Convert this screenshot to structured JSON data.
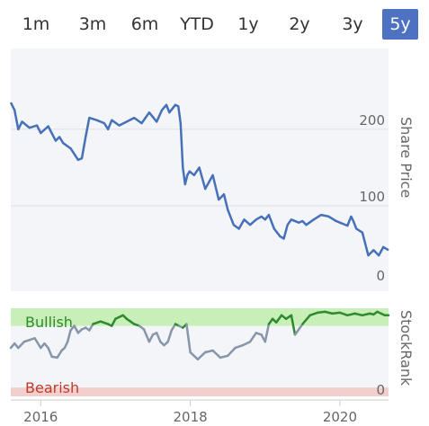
{
  "range_tabs": [
    {
      "label": "1m",
      "active": false
    },
    {
      "label": "3m",
      "active": false
    },
    {
      "label": "6m",
      "active": false
    },
    {
      "label": "YTD",
      "active": false
    },
    {
      "label": "1y",
      "active": false
    },
    {
      "label": "2y",
      "active": false
    },
    {
      "label": "3y",
      "active": false
    },
    {
      "label": "5y",
      "active": true
    }
  ],
  "colors": {
    "price_line": "#4670b8",
    "bullish_band": "#c8efb7",
    "bearish_band": "#f1cfcd",
    "bullish_line": "#2f8a2f",
    "neutral_line": "#8796a8",
    "active_tab": "#4d72c2"
  },
  "chart_data": [
    {
      "type": "line",
      "ylabel": "Share Price",
      "ylim": [
        0,
        260
      ],
      "y_ticks": [
        "200",
        "100",
        "0"
      ],
      "y_tick_values": [
        200,
        100,
        0
      ],
      "x_ticks": [
        "2016",
        "2018",
        "2020"
      ],
      "x_tick_values": [
        2016,
        2018,
        2020
      ],
      "xlim": [
        2015.6,
        2020.65
      ],
      "grid": true,
      "series": [
        {
          "x": [
            2015.6,
            2015.65,
            2015.7,
            2015.75,
            2015.85,
            2015.95,
            2016.0,
            2016.1,
            2016.2,
            2016.25,
            2016.3,
            2016.4,
            2016.5,
            2016.55,
            2016.6,
            2016.65,
            2016.75,
            2016.85,
            2016.9,
            2016.95,
            2017.05,
            2017.15,
            2017.25,
            2017.35,
            2017.45,
            2017.55,
            2017.62,
            2017.68,
            2017.72,
            2017.8,
            2017.84,
            2017.87,
            2017.9,
            2017.93,
            2017.96,
            2017.99,
            2018.05,
            2018.12,
            2018.2,
            2018.3,
            2018.38,
            2018.45,
            2018.5,
            2018.58,
            2018.65,
            2018.72,
            2018.8,
            2018.88,
            2018.95,
            2019.0,
            2019.05,
            2019.12,
            2019.2,
            2019.25,
            2019.3,
            2019.35,
            2019.45,
            2019.5,
            2019.55,
            2019.65,
            2019.75,
            2019.85,
            2019.95,
            2020.0,
            2020.05,
            2020.1,
            2020.15,
            2020.18,
            2020.22,
            2020.3,
            2020.38,
            2020.45,
            2020.52,
            2020.58,
            2020.65
          ],
          "y": [
            235,
            225,
            200,
            210,
            202,
            205,
            195,
            204,
            185,
            190,
            182,
            175,
            160,
            162,
            190,
            215,
            212,
            208,
            200,
            212,
            205,
            210,
            215,
            208,
            222,
            210,
            225,
            232,
            222,
            232,
            230,
            208,
            150,
            128,
            140,
            145,
            140,
            150,
            122,
            140,
            108,
            115,
            95,
            75,
            70,
            82,
            75,
            82,
            86,
            82,
            88,
            70,
            60,
            57,
            75,
            82,
            78,
            80,
            75,
            82,
            88,
            86,
            80,
            78,
            76,
            74,
            86,
            80,
            70,
            65,
            35,
            42,
            35,
            46,
            42
          ],
          "color": "#4670b8"
        }
      ]
    },
    {
      "type": "line",
      "ylabel": "StockRank",
      "bands": [
        {
          "label": "Bullish",
          "from": 80,
          "to": 100,
          "color": "#c8efb7"
        },
        {
          "label": "Bearish",
          "from": 0,
          "to": 10,
          "color": "#f1cfcd"
        }
      ],
      "ylim": [
        0,
        100
      ],
      "y_ticks": [
        "0"
      ],
      "y_tick_values": [
        0
      ],
      "xlim": [
        2015.6,
        2020.65
      ],
      "series": [
        {
          "x": [
            2015.6,
            2015.65,
            2015.7,
            2015.78,
            2015.85,
            2015.92,
            2016.0,
            2016.05,
            2016.1,
            2016.15,
            2016.22,
            2016.28,
            2016.32,
            2016.36,
            2016.4,
            2016.45,
            2016.5,
            2016.55,
            2016.6,
            2016.65,
            2016.7,
            2016.8,
            2016.9,
            2016.95,
            2017.0,
            2017.05,
            2017.1,
            2017.15,
            2017.2,
            2017.25,
            2017.32,
            2017.38,
            2017.45,
            2017.5,
            2017.55,
            2017.6,
            2017.65,
            2017.7,
            2017.75,
            2017.8,
            2017.85,
            2017.9,
            2017.95,
            2018.0,
            2018.1,
            2018.2,
            2018.3,
            2018.4,
            2018.5,
            2018.6,
            2018.7,
            2018.8,
            2018.88,
            2018.95,
            2019.0,
            2019.05,
            2019.1,
            2019.15,
            2019.22,
            2019.28,
            2019.35,
            2019.4,
            2019.5,
            2019.6,
            2019.7,
            2019.8,
            2019.9,
            2020.0,
            2020.1,
            2020.2,
            2020.3,
            2020.4,
            2020.45,
            2020.5,
            2020.55,
            2020.6,
            2020.65
          ],
          "y": [
            55,
            60,
            55,
            62,
            64,
            66,
            55,
            60,
            55,
            45,
            44,
            52,
            55,
            62,
            75,
            80,
            72,
            76,
            78,
            75,
            82,
            85,
            82,
            80,
            88,
            90,
            92,
            88,
            85,
            82,
            80,
            76,
            62,
            70,
            72,
            62,
            58,
            62,
            75,
            82,
            80,
            78,
            82,
            50,
            42,
            50,
            52,
            44,
            46,
            55,
            58,
            62,
            72,
            70,
            62,
            82,
            88,
            84,
            92,
            88,
            92,
            70,
            82,
            92,
            95,
            96,
            94,
            95,
            92,
            94,
            92,
            94,
            93,
            96,
            94,
            92,
            92
          ],
          "color_bullish": "#2f8a2f",
          "color_neutral": "#8796a8",
          "bullish_threshold": 80
        }
      ]
    }
  ]
}
